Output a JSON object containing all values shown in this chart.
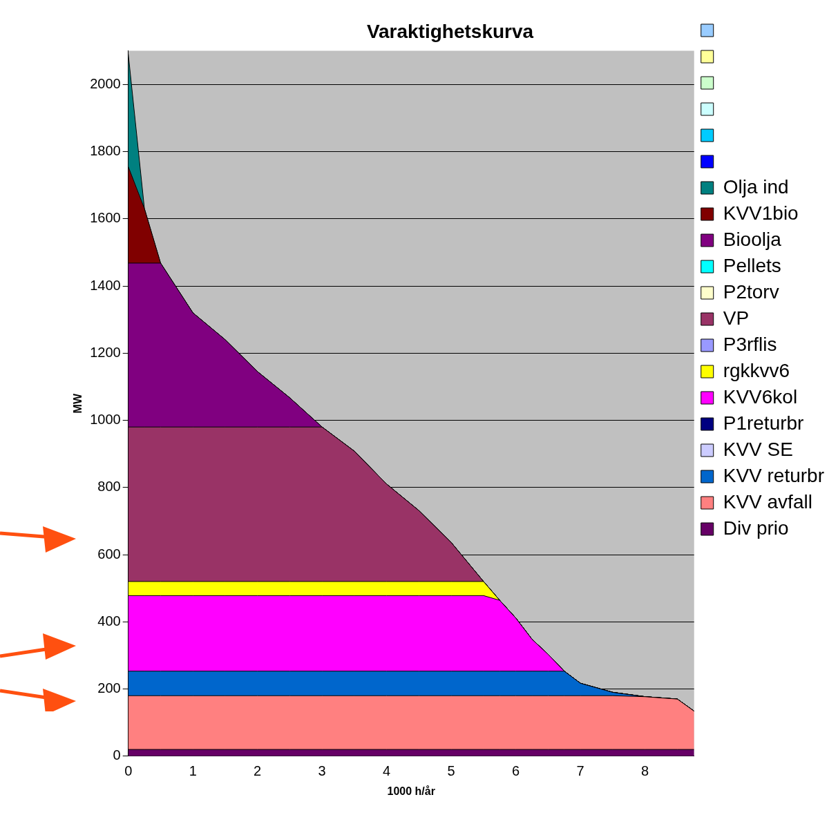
{
  "chart_data": {
    "type": "area",
    "title": "Varaktighetskurva",
    "xlabel": "1000 h/år",
    "ylabel": "MW",
    "stacked": true,
    "grid": "y",
    "legend": "right",
    "xlim": [
      0,
      8.76
    ],
    "xticks": [
      0,
      1,
      2,
      3,
      4,
      5,
      6,
      7,
      8
    ],
    "ylim": [
      0,
      2100
    ],
    "yticks": [
      0,
      200,
      400,
      600,
      800,
      1000,
      1200,
      1400,
      1600,
      1800,
      2000
    ],
    "x": [
      0,
      0.25,
      0.5,
      1,
      1.5,
      2,
      2.5,
      3,
      3.5,
      4,
      4.5,
      5,
      5.5,
      5.75,
      6,
      6.25,
      6.5,
      6.75,
      7,
      7.5,
      8,
      8.5,
      8.76
    ],
    "series": [
      {
        "name": "Div prio",
        "color": "#660066",
        "values": [
          20,
          20,
          20,
          20,
          20,
          20,
          20,
          20,
          20,
          20,
          20,
          20,
          20,
          20,
          20,
          20,
          20,
          20,
          20,
          20,
          20,
          20,
          20
        ]
      },
      {
        "name": "KVV avfall",
        "color": "#ff8080",
        "values": [
          160,
          160,
          160,
          160,
          160,
          160,
          160,
          160,
          160,
          160,
          160,
          160,
          160,
          160,
          160,
          160,
          160,
          160,
          160,
          160,
          157,
          150,
          114
        ]
      },
      {
        "name": "KVV returbr",
        "color": "#0066cc",
        "values": [
          73,
          73,
          73,
          73,
          73,
          73,
          73,
          73,
          73,
          73,
          73,
          73,
          73,
          73,
          73,
          73,
          73,
          73,
          37,
          10,
          0,
          0,
          0
        ]
      },
      {
        "name": "KVV SE",
        "color": "#ccccff",
        "values": [
          null,
          null,
          null,
          null,
          null,
          null,
          null,
          null,
          null,
          null,
          null,
          null,
          null,
          null,
          null,
          null,
          null,
          null,
          null,
          null,
          null,
          null,
          null
        ]
      },
      {
        "name": "P1returbr",
        "color": "#000080",
        "values": [
          null,
          null,
          null,
          null,
          null,
          null,
          null,
          null,
          null,
          null,
          null,
          null,
          null,
          null,
          null,
          null,
          null,
          null,
          null,
          null,
          null,
          null,
          null
        ]
      },
      {
        "name": "KVV6kol",
        "color": "#ff00ff",
        "values": [
          225,
          225,
          225,
          225,
          225,
          225,
          225,
          225,
          225,
          225,
          225,
          225,
          225,
          211,
          158,
          95,
          50,
          0,
          0,
          0,
          0,
          0,
          0
        ]
      },
      {
        "name": "rgkkvv6",
        "color": "#ffff00",
        "values": [
          42,
          42,
          42,
          42,
          42,
          42,
          42,
          42,
          42,
          42,
          42,
          42,
          42,
          0,
          0,
          0,
          0,
          0,
          0,
          0,
          0,
          0,
          0
        ]
      },
      {
        "name": "P3rflis",
        "color": "#9999ff",
        "values": [
          null,
          null,
          null,
          null,
          null,
          null,
          null,
          null,
          null,
          null,
          null,
          null,
          null,
          null,
          null,
          null,
          null,
          null,
          null,
          null,
          null,
          null,
          null
        ]
      },
      {
        "name": "VP",
        "color": "#993366",
        "values": [
          460,
          460,
          460,
          460,
          460,
          460,
          460,
          460,
          388,
          290,
          211,
          116,
          0,
          0,
          0,
          0,
          0,
          0,
          0,
          0,
          0,
          0,
          0
        ]
      },
      {
        "name": "P2torv",
        "color": "#ffffcc",
        "values": [
          null,
          null,
          null,
          null,
          null,
          null,
          null,
          null,
          null,
          null,
          null,
          null,
          null,
          null,
          null,
          null,
          null,
          null,
          null,
          null,
          null,
          null,
          null
        ]
      },
      {
        "name": "Pellets",
        "color": "#00ffff",
        "values": [
          null,
          null,
          null,
          null,
          null,
          null,
          null,
          null,
          null,
          null,
          null,
          null,
          null,
          null,
          null,
          null,
          null,
          null,
          null,
          null,
          null,
          null,
          null
        ]
      },
      {
        "name": "Bioolja",
        "color": "#800080",
        "values": [
          488,
          488,
          488,
          340,
          260,
          165,
          87,
          0,
          0,
          0,
          0,
          0,
          0,
          0,
          0,
          0,
          0,
          0,
          0,
          0,
          0,
          0,
          0
        ]
      },
      {
        "name": "KVV1bio",
        "color": "#800000",
        "values": [
          287,
          162,
          0,
          0,
          0,
          0,
          0,
          0,
          0,
          0,
          0,
          0,
          0,
          0,
          0,
          0,
          0,
          0,
          0,
          0,
          0,
          0,
          0
        ]
      },
      {
        "name": "Olja ind",
        "color": "#008080",
        "values": [
          335,
          0,
          0,
          0,
          0,
          0,
          0,
          0,
          0,
          0,
          0,
          0,
          0,
          0,
          0,
          0,
          0,
          0,
          0,
          0,
          0,
          0,
          0
        ]
      },
      {
        "color": "#0000ff",
        "values": [
          null,
          null,
          null,
          null,
          null,
          null,
          null,
          null,
          null,
          null,
          null,
          null,
          null,
          null,
          null,
          null,
          null,
          null,
          null,
          null,
          null,
          null,
          null
        ]
      },
      {
        "color": "#00ccff",
        "values": [
          null,
          null,
          null,
          null,
          null,
          null,
          null,
          null,
          null,
          null,
          null,
          null,
          null,
          null,
          null,
          null,
          null,
          null,
          null,
          null,
          null,
          null,
          null
        ]
      },
      {
        "color": "#ccffff",
        "values": [
          null,
          null,
          null,
          null,
          null,
          null,
          null,
          null,
          null,
          null,
          null,
          null,
          null,
          null,
          null,
          null,
          null,
          null,
          null,
          null,
          null,
          null,
          null
        ]
      },
      {
        "color": "#ccffcc",
        "values": [
          null,
          null,
          null,
          null,
          null,
          null,
          null,
          null,
          null,
          null,
          null,
          null,
          null,
          null,
          null,
          null,
          null,
          null,
          null,
          null,
          null,
          null,
          null
        ]
      },
      {
        "color": "#ffff99",
        "values": [
          null,
          null,
          null,
          null,
          null,
          null,
          null,
          null,
          null,
          null,
          null,
          null,
          null,
          null,
          null,
          null,
          null,
          null,
          null,
          null,
          null,
          null,
          null
        ]
      },
      {
        "color": "#99ccff",
        "values": [
          null,
          null,
          null,
          null,
          null,
          null,
          null,
          null,
          null,
          null,
          null,
          null,
          null,
          null,
          null,
          null,
          null,
          null,
          null,
          null,
          null,
          null,
          null
        ]
      }
    ]
  }
}
